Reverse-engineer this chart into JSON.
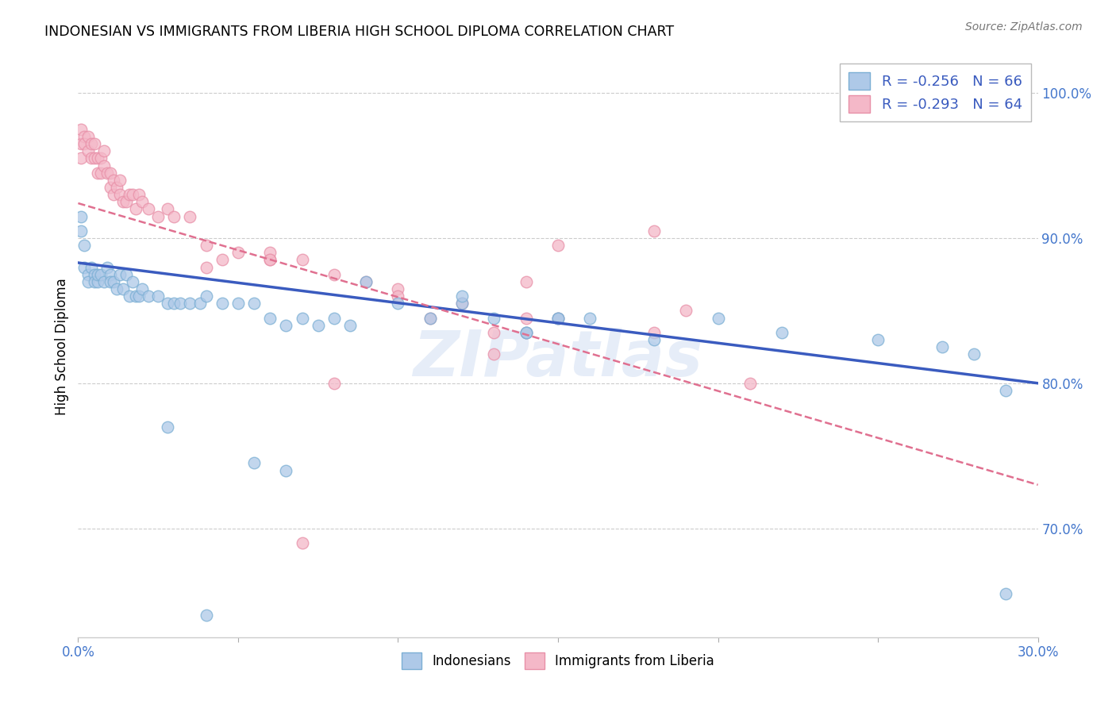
{
  "title": "INDONESIAN VS IMMIGRANTS FROM LIBERIA HIGH SCHOOL DIPLOMA CORRELATION CHART",
  "source": "Source: ZipAtlas.com",
  "ylabel": "High School Diploma",
  "legend_label1": "Indonesians",
  "legend_label2": "Immigrants from Liberia",
  "r1": -0.256,
  "n1": 66,
  "r2": -0.293,
  "n2": 64,
  "color1": "#aec9e8",
  "color2": "#f4b8c8",
  "edge1": "#7bafd4",
  "edge2": "#e890a8",
  "trendline1_color": "#3a5bbf",
  "trendline2_color": "#e07090",
  "watermark": "ZIPatlas",
  "xlim": [
    0.0,
    0.3
  ],
  "ylim": [
    0.625,
    1.025
  ],
  "xtick_positions": [
    0.0,
    0.05,
    0.1,
    0.15,
    0.2,
    0.25,
    0.3
  ],
  "ytick_positions": [
    0.7,
    0.8,
    0.9,
    1.0
  ],
  "indonesians_x": [
    0.001,
    0.001,
    0.002,
    0.002,
    0.003,
    0.003,
    0.004,
    0.005,
    0.005,
    0.006,
    0.006,
    0.007,
    0.008,
    0.009,
    0.01,
    0.01,
    0.011,
    0.012,
    0.013,
    0.014,
    0.015,
    0.016,
    0.017,
    0.018,
    0.019,
    0.02,
    0.022,
    0.025,
    0.028,
    0.03,
    0.032,
    0.035,
    0.038,
    0.04,
    0.045,
    0.05,
    0.055,
    0.06,
    0.065,
    0.07,
    0.075,
    0.08,
    0.085,
    0.09,
    0.1,
    0.11,
    0.12,
    0.13,
    0.14,
    0.15,
    0.16,
    0.18,
    0.2,
    0.22,
    0.25,
    0.27,
    0.28,
    0.29,
    0.14,
    0.15,
    0.12,
    0.055,
    0.065,
    0.29,
    0.028,
    0.04
  ],
  "indonesians_y": [
    0.915,
    0.905,
    0.88,
    0.895,
    0.875,
    0.87,
    0.88,
    0.875,
    0.87,
    0.87,
    0.875,
    0.875,
    0.87,
    0.88,
    0.875,
    0.87,
    0.87,
    0.865,
    0.875,
    0.865,
    0.875,
    0.86,
    0.87,
    0.86,
    0.86,
    0.865,
    0.86,
    0.86,
    0.855,
    0.855,
    0.855,
    0.855,
    0.855,
    0.86,
    0.855,
    0.855,
    0.855,
    0.845,
    0.84,
    0.845,
    0.84,
    0.845,
    0.84,
    0.87,
    0.855,
    0.845,
    0.855,
    0.845,
    0.835,
    0.845,
    0.845,
    0.83,
    0.845,
    0.835,
    0.83,
    0.825,
    0.82,
    0.795,
    0.835,
    0.845,
    0.86,
    0.745,
    0.74,
    0.655,
    0.77,
    0.64
  ],
  "liberia_x": [
    0.001,
    0.001,
    0.001,
    0.002,
    0.002,
    0.003,
    0.003,
    0.004,
    0.004,
    0.005,
    0.005,
    0.006,
    0.006,
    0.007,
    0.007,
    0.008,
    0.008,
    0.009,
    0.01,
    0.01,
    0.011,
    0.011,
    0.012,
    0.013,
    0.013,
    0.014,
    0.015,
    0.016,
    0.017,
    0.018,
    0.019,
    0.02,
    0.022,
    0.025,
    0.028,
    0.03,
    0.035,
    0.04,
    0.045,
    0.05,
    0.06,
    0.07,
    0.08,
    0.09,
    0.1,
    0.11,
    0.12,
    0.13,
    0.14,
    0.15,
    0.18,
    0.19,
    0.21,
    0.14,
    0.13,
    0.1,
    0.08,
    0.06,
    0.15,
    0.18,
    0.07,
    0.04,
    0.06,
    0.14
  ],
  "liberia_y": [
    0.975,
    0.965,
    0.955,
    0.97,
    0.965,
    0.97,
    0.96,
    0.965,
    0.955,
    0.965,
    0.955,
    0.955,
    0.945,
    0.955,
    0.945,
    0.96,
    0.95,
    0.945,
    0.945,
    0.935,
    0.94,
    0.93,
    0.935,
    0.94,
    0.93,
    0.925,
    0.925,
    0.93,
    0.93,
    0.92,
    0.93,
    0.925,
    0.92,
    0.915,
    0.92,
    0.915,
    0.915,
    0.895,
    0.885,
    0.89,
    0.885,
    0.885,
    0.875,
    0.87,
    0.865,
    0.845,
    0.855,
    0.82,
    0.835,
    0.845,
    0.835,
    0.85,
    0.8,
    0.87,
    0.835,
    0.86,
    0.8,
    0.89,
    0.895,
    0.905,
    0.69,
    0.88,
    0.885,
    0.845
  ],
  "trendline1_x0": 0.0,
  "trendline1_y0": 0.883,
  "trendline1_x1": 0.3,
  "trendline1_y1": 0.8,
  "trendline2_x0": 0.0,
  "trendline2_y0": 0.924,
  "trendline2_x1": 0.3,
  "trendline2_y1": 0.73
}
